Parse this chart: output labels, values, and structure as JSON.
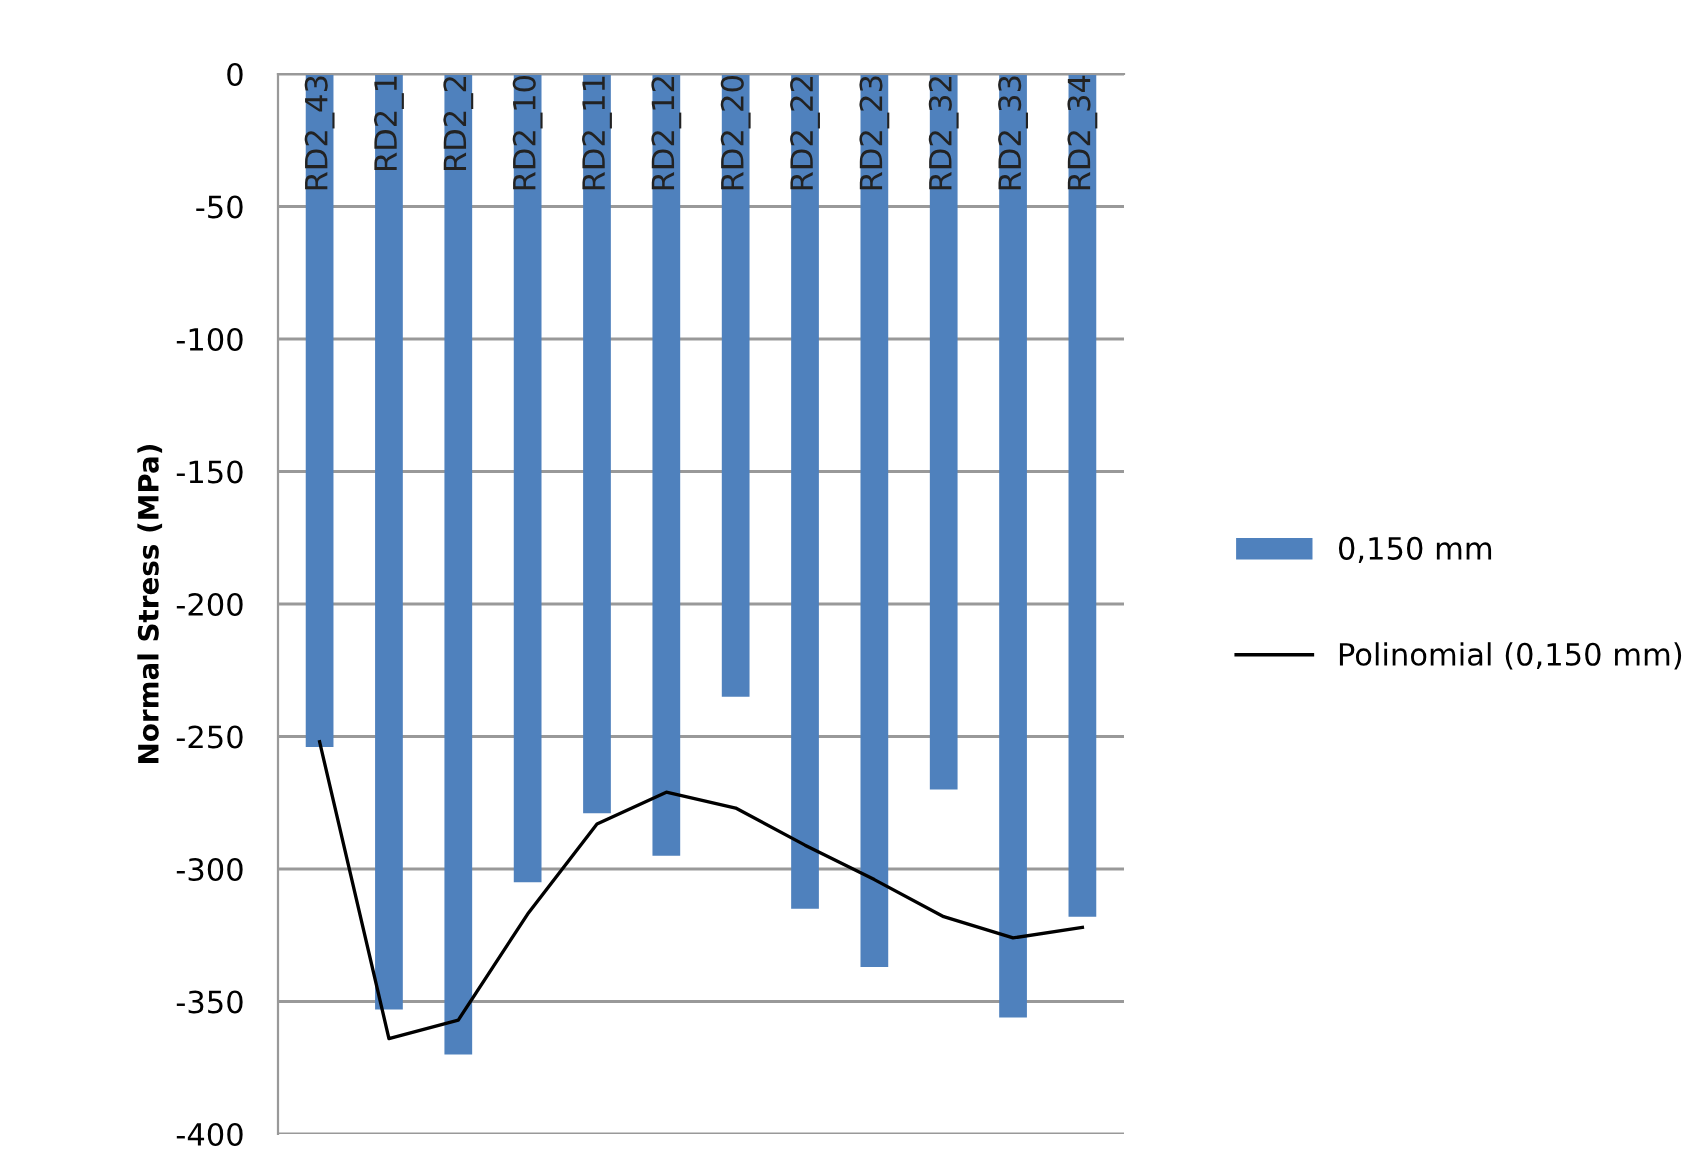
{
  "chart_data": {
    "type": "bar",
    "ylabel": "Normal Stress (MPa)",
    "categories": [
      "RD2_43",
      "RD2_1",
      "RD2_2",
      "RD2_10",
      "RD2_11",
      "RD2_12",
      "RD2_20",
      "RD2_22",
      "RD2_23",
      "RD2_32",
      "RD2_33",
      "RD2_34"
    ],
    "series": [
      {
        "name": "0,150 mm",
        "color": "#4f81bd",
        "values": [
          -254,
          -353,
          -370,
          -305,
          -279,
          -295,
          -235,
          -315,
          -337,
          -270,
          -356,
          -318
        ]
      },
      {
        "name": "Polinomial (0,150 mm)",
        "type": "line",
        "color": "#000000",
        "values": [
          -252,
          -364,
          -357,
          -317,
          -283,
          -271,
          -277,
          -291,
          -304,
          -318,
          -326,
          -322
        ]
      }
    ],
    "ylim": [
      -400,
      0
    ],
    "yticks": [
      -400,
      -350,
      -300,
      -250,
      -200,
      -150,
      -100,
      -50,
      0
    ],
    "grid": "y",
    "legend": "right"
  }
}
